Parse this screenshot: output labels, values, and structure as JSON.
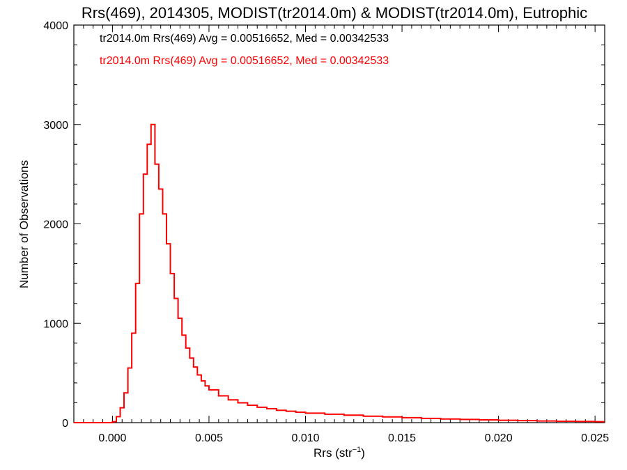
{
  "chart_data": {
    "type": "histogram",
    "title": "Rrs(469), 2014305, MODIST(tr2014.0m) & MODIST(tr2014.0m), Eutrophic",
    "xlabel_base": "Rrs (str",
    "xlabel_sup": "−1",
    "xlabel_tail": ")",
    "ylabel": "Number of Observations",
    "xlim": [
      -0.002,
      0.0255
    ],
    "ylim": [
      0,
      4000
    ],
    "x_ticks": [
      0.0,
      0.005,
      0.01,
      0.015,
      0.02,
      0.025
    ],
    "x_tick_labels": [
      "0.000",
      "0.005",
      "0.010",
      "0.015",
      "0.020",
      "0.025"
    ],
    "y_ticks": [
      0,
      1000,
      2000,
      3000,
      4000
    ],
    "y_tick_labels": [
      "0",
      "1000",
      "2000",
      "3000",
      "4000"
    ],
    "grid": false,
    "legend_position": "top-left",
    "annotations": [
      {
        "text": "tr2014.0m Rrs(469) Avg = 0.00516652, Med = 0.00342533",
        "color": "#000000"
      },
      {
        "text": "tr2014.0m Rrs(469) Avg = 0.00516652, Med = 0.00342533",
        "color": "#ff0000"
      }
    ],
    "series": [
      {
        "color": "#ff0000",
        "x": [
          -0.0002,
          0.0,
          0.0002,
          0.0004,
          0.0006,
          0.0008,
          0.001,
          0.0012,
          0.0014,
          0.0016,
          0.0018,
          0.002,
          0.0022,
          0.0024,
          0.0026,
          0.0028,
          0.003,
          0.0032,
          0.0034,
          0.0036,
          0.0038,
          0.004,
          0.0042,
          0.0044,
          0.0046,
          0.0048,
          0.005,
          0.0055,
          0.006,
          0.0065,
          0.007,
          0.0075,
          0.008,
          0.0085,
          0.009,
          0.0095,
          0.01,
          0.011,
          0.012,
          0.013,
          0.014,
          0.015,
          0.016,
          0.017,
          0.018,
          0.019,
          0.02,
          0.021,
          0.022,
          0.023,
          0.024,
          0.025
        ],
        "y": [
          0,
          10,
          60,
          150,
          300,
          550,
          900,
          1400,
          2100,
          2500,
          2800,
          3000,
          2600,
          2350,
          2100,
          1800,
          1500,
          1250,
          1050,
          880,
          750,
          650,
          560,
          480,
          420,
          370,
          330,
          270,
          230,
          200,
          175,
          155,
          140,
          125,
          115,
          105,
          95,
          85,
          75,
          65,
          58,
          50,
          43,
          37,
          32,
          28,
          24,
          20,
          17,
          14,
          12,
          10
        ]
      }
    ]
  }
}
